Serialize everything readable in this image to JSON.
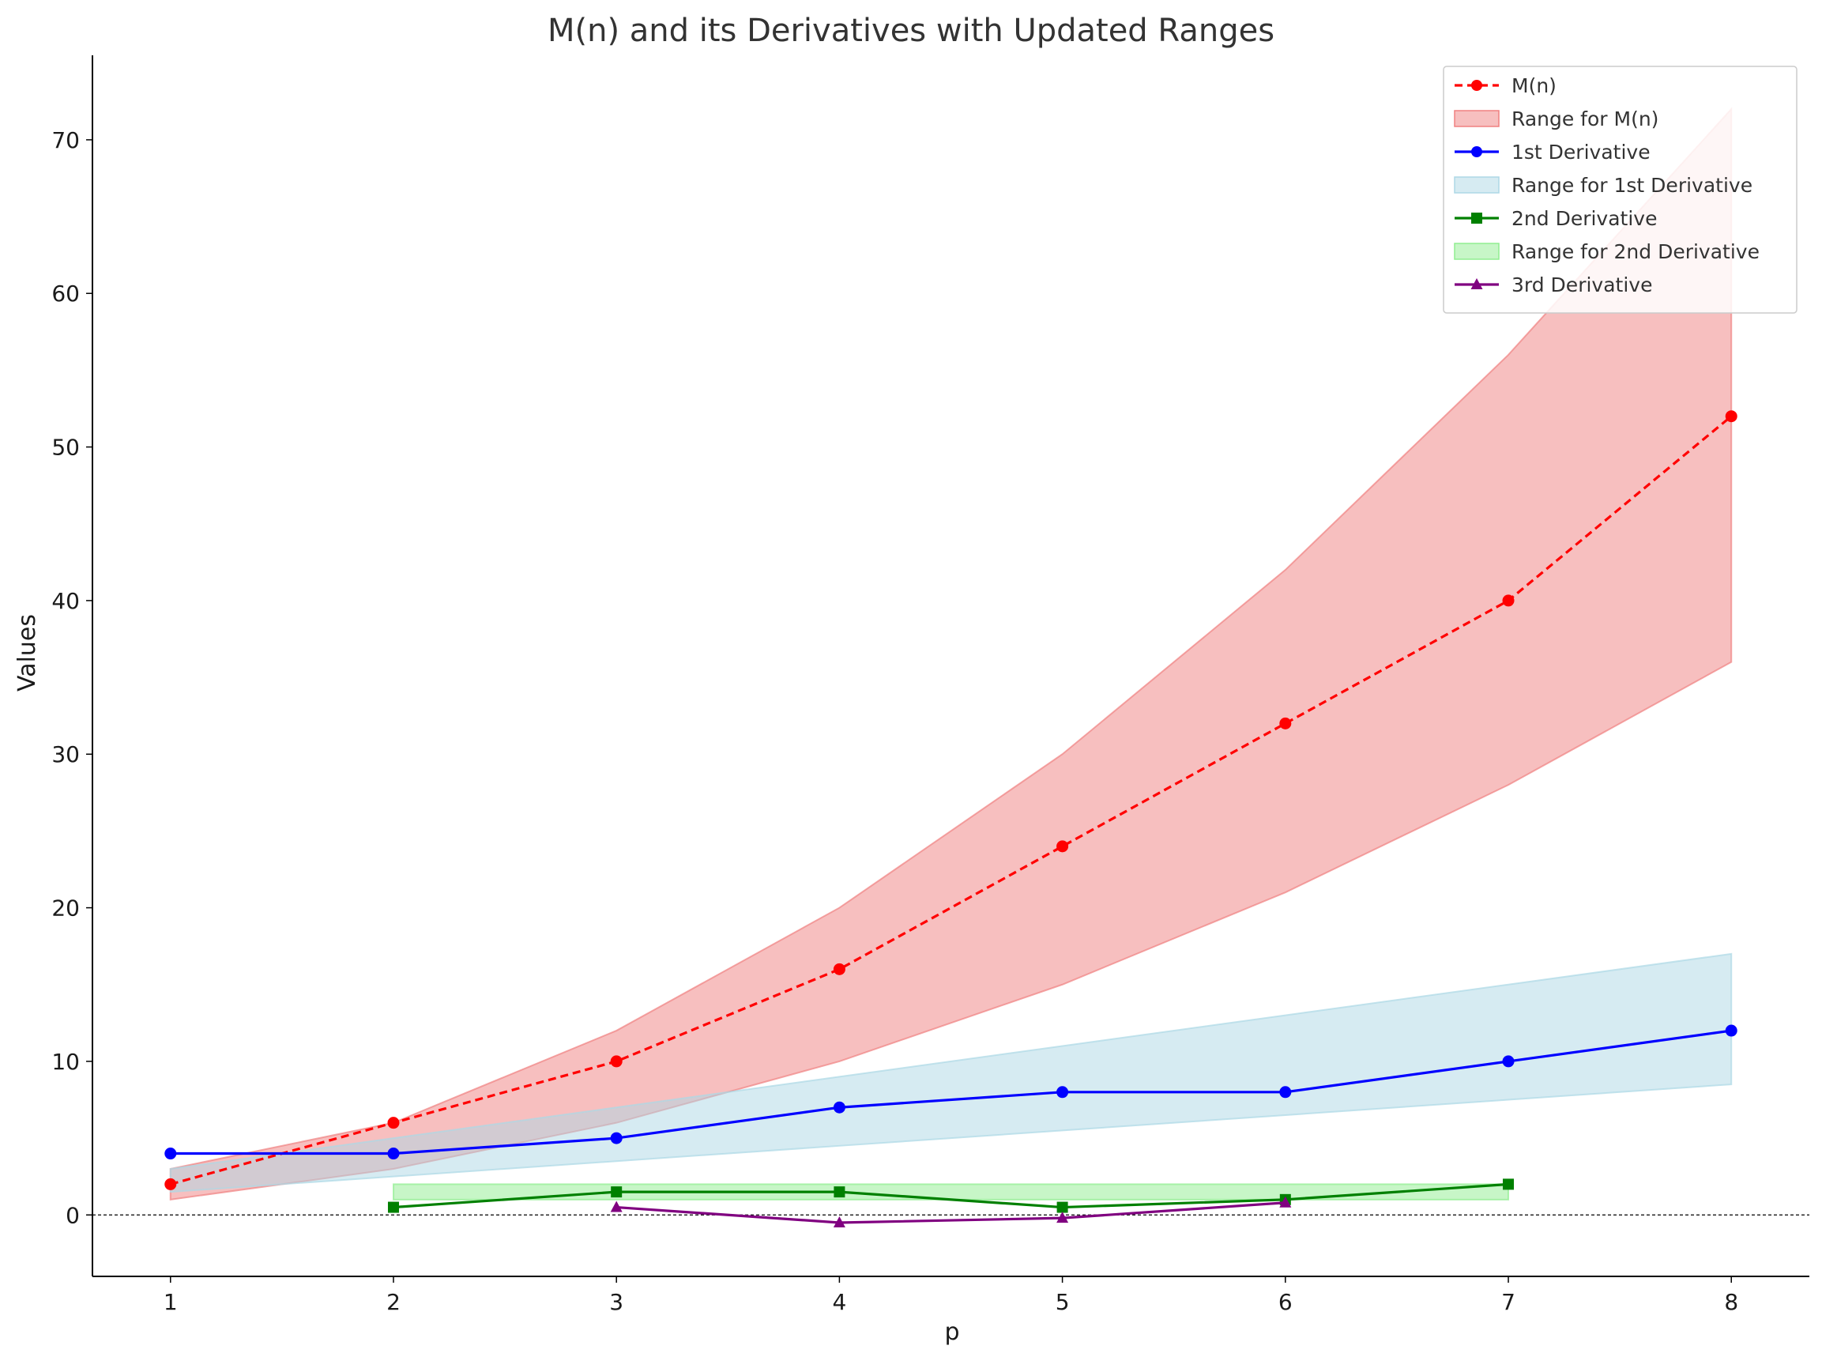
{
  "chart_data": {
    "type": "line",
    "title": "M(n) and its Derivatives with Updated Ranges",
    "xlabel": "p",
    "ylabel": "Values",
    "xlim": [
      0.65,
      8.35
    ],
    "ylim": [
      -4,
      75.5
    ],
    "xticks": [
      1,
      2,
      3,
      4,
      5,
      6,
      7,
      8
    ],
    "yticks": [
      0,
      10,
      20,
      30,
      40,
      50,
      60,
      70
    ],
    "zero_line": true,
    "legend_position": "top-right",
    "ranges": [
      {
        "name": "Range for M(n)",
        "color": "#f08080",
        "opacity": 0.5,
        "x": [
          1,
          2,
          3,
          4,
          5,
          6,
          7,
          8
        ],
        "lower": [
          1,
          3,
          6,
          10,
          15,
          21,
          28,
          36
        ],
        "upper": [
          3,
          6,
          12,
          20,
          30,
          42,
          56,
          72
        ]
      },
      {
        "name": "Range for 1st Derivative",
        "color": "#add8e6",
        "opacity": 0.5,
        "x": [
          1,
          2,
          3,
          4,
          5,
          6,
          7,
          8
        ],
        "lower": [
          1.5,
          2.5,
          3.5,
          4.5,
          5.5,
          6.5,
          7.5,
          8.5
        ],
        "upper": [
          3,
          5,
          7,
          9,
          11,
          13,
          15,
          17
        ]
      },
      {
        "name": "Range for 2nd Derivative",
        "color": "#90ee90",
        "opacity": 0.5,
        "x": [
          2,
          3,
          4,
          5,
          6,
          7
        ],
        "lower": [
          1,
          1,
          1,
          1,
          1,
          1
        ],
        "upper": [
          2,
          2,
          2,
          2,
          2,
          2
        ]
      }
    ],
    "series": [
      {
        "name": "M(n)",
        "color": "#ff0000",
        "dash": true,
        "marker": "circle",
        "x": [
          1,
          2,
          3,
          4,
          5,
          6,
          7,
          8
        ],
        "values": [
          2,
          6,
          10,
          16,
          24,
          32,
          40,
          52
        ]
      },
      {
        "name": "1st Derivative",
        "color": "#0000ff",
        "dash": false,
        "marker": "circle",
        "x": [
          1,
          2,
          3,
          4,
          5,
          6,
          7,
          8
        ],
        "values": [
          4,
          4,
          5,
          7,
          8,
          8,
          10,
          12
        ]
      },
      {
        "name": "2nd Derivative",
        "color": "#008000",
        "dash": false,
        "marker": "square",
        "x": [
          2,
          3,
          4,
          5,
          6,
          7
        ],
        "values": [
          0.5,
          1.5,
          1.5,
          0.5,
          1,
          2
        ]
      },
      {
        "name": "3rd Derivative",
        "color": "#800080",
        "dash": false,
        "marker": "triangle",
        "x": [
          3,
          4,
          5,
          6
        ],
        "values": [
          0.5,
          -0.5,
          -0.2,
          0.8
        ]
      }
    ],
    "legend": [
      {
        "label": "M(n)",
        "kind": "line",
        "ref": "M(n)"
      },
      {
        "label": "Range for M(n)",
        "kind": "patch",
        "ref": "Range for M(n)"
      },
      {
        "label": "1st Derivative",
        "kind": "line",
        "ref": "1st Derivative"
      },
      {
        "label": "Range for 1st Derivative",
        "kind": "patch",
        "ref": "Range for 1st Derivative"
      },
      {
        "label": "2nd Derivative",
        "kind": "line",
        "ref": "2nd Derivative"
      },
      {
        "label": "Range for 2nd Derivative",
        "kind": "patch",
        "ref": "Range for 2nd Derivative"
      },
      {
        "label": "3rd Derivative",
        "kind": "line",
        "ref": "3rd Derivative"
      }
    ]
  }
}
